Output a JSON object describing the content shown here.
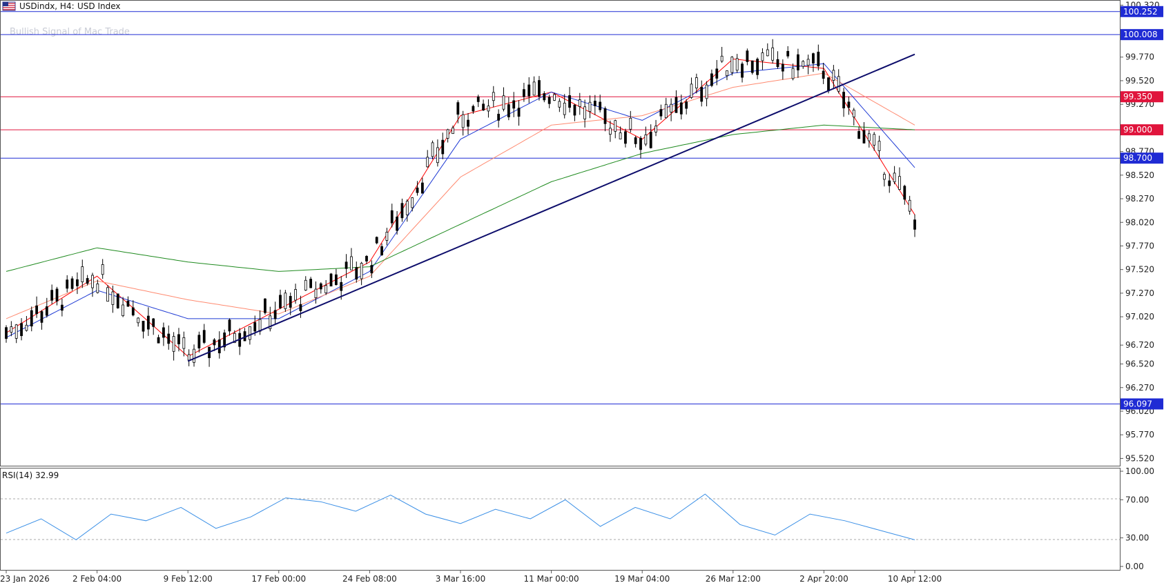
{
  "header": {
    "symbol": "USDindx, H4:",
    "description": "USD Index",
    "watermark": "Bullish Signal of Mac Trade"
  },
  "rsi_panel": {
    "label": "RSI(14) 32.99"
  },
  "price_axis": {
    "tick_labels": [
      "100.320",
      "99.770",
      "99.520",
      "99.270",
      "98.770",
      "98.520",
      "98.270",
      "98.020",
      "97.770",
      "97.520",
      "97.270",
      "97.020",
      "96.720",
      "96.520",
      "96.270",
      "96.020",
      "95.770",
      "95.520"
    ]
  },
  "rsi_axis": {
    "tick_labels": [
      "100.00",
      "70.00",
      "30.00",
      "0.00"
    ]
  },
  "time_axis": {
    "tick_labels": [
      "23 Jan 2026",
      "2 Feb 04:00",
      "9 Feb 12:00",
      "17 Feb 00:00",
      "24 Feb 08:00",
      "3 Mar 16:00",
      "11 Mar 00:00",
      "19 Mar 04:00",
      "26 Mar 12:00",
      "2 Apr 20:00",
      "10 Apr 12:00"
    ]
  },
  "levels": [
    {
      "label": "100.252",
      "value": 100.252,
      "color": "#1f2bd4"
    },
    {
      "label": "100.008",
      "value": 100.008,
      "color": "#1f2bd4"
    },
    {
      "label": "99.350",
      "value": 99.35,
      "color": "#e0143c"
    },
    {
      "label": "99.000",
      "value": 99.0,
      "color": "#e0143c"
    },
    {
      "label": "98.700",
      "value": 98.7,
      "color": "#1f2bd4"
    },
    {
      "label": "96.097",
      "value": 96.097,
      "color": "#1f2bd4"
    }
  ],
  "colors": {
    "candles": "#000000",
    "ma_fast": "#ff0000",
    "ma_mid": "#1f3bd4",
    "ma_slow": "#ff8a70",
    "ma_long": "#1e8a1e",
    "trendline": "#0d0d6b",
    "rsi_line": "#3a8fe6",
    "grid_dash": "#a8a8a8"
  },
  "chart_data": {
    "type": "line",
    "title": "USDindx, H4: USD Index",
    "ylim": [
      95.45,
      100.36
    ],
    "x": [
      "23 Jan 2026",
      "2 Feb 04:00",
      "9 Feb 12:00",
      "17 Feb 00:00",
      "24 Feb 08:00",
      "3 Mar 16:00",
      "11 Mar 00:00",
      "19 Mar 04:00",
      "26 Mar 12:00",
      "2 Apr 20:00",
      "10 Apr 12:00"
    ],
    "series": [
      {
        "values": [
          96.85,
          97.45,
          96.6,
          97.1,
          97.6,
          99.15,
          99.4,
          98.9,
          99.75,
          99.65,
          98.1
        ]
      },
      {
        "values": [
          96.8,
          97.3,
          97.0,
          97.0,
          97.5,
          98.9,
          99.4,
          99.1,
          99.6,
          99.7,
          98.6
        ]
      },
      {
        "values": [
          97.0,
          97.4,
          97.2,
          97.05,
          97.45,
          98.5,
          99.05,
          99.15,
          99.45,
          99.6,
          99.05
        ]
      },
      {
        "values": [
          97.5,
          97.75,
          97.6,
          97.5,
          97.55,
          98.0,
          98.45,
          98.75,
          98.95,
          99.05,
          99.0
        ]
      }
    ],
    "trendline": {
      "start": [
        "9 Feb 12:00",
        96.55
      ],
      "end": [
        "10 Apr 12:00",
        99.8
      ]
    },
    "rsi": {
      "ylim": [
        0,
        100
      ],
      "levels": [
        70,
        30
      ],
      "values": [
        35,
        50,
        28,
        55,
        48,
        62,
        40,
        52,
        72,
        68,
        58,
        75,
        55,
        45,
        60,
        50,
        70,
        42,
        62,
        50,
        76,
        44,
        33,
        55,
        48,
        38,
        28
      ]
    }
  }
}
